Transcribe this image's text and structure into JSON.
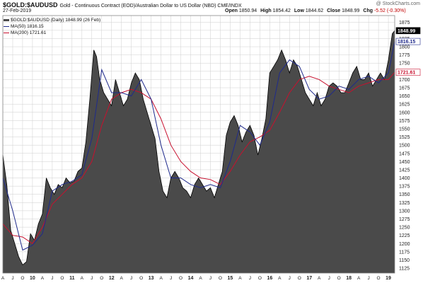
{
  "header": {
    "symbol": "$GOLD:$AUDUSD",
    "description": "Gold - Continuous Contract (EOD)/Australian Dollar to US Dollar (NBD)  CME/INDX",
    "date": "27-Feb-2019",
    "watermark": "@ StockCharts.com",
    "ohlc": {
      "open_label": "Open",
      "open": "1850.94",
      "high_label": "High",
      "high": "1854.42",
      "low_label": "Low",
      "low": "1844.62",
      "close_label": "Close",
      "close": "1848.99",
      "chg_label": "Chg",
      "chg": "-5.52 (-0.30%)"
    }
  },
  "legend": {
    "main": "$GOLD:$AUDUSD (Daily) 1848.99 (26 Feb)",
    "ma50": "MA(50) 1816.15",
    "ma200": "MA(200) 1721.61"
  },
  "colors": {
    "area_fill": "#4a4a4a",
    "price_line": "#000000",
    "ma50": "#1f2a8c",
    "ma200": "#c8102e",
    "grid": "#cfcfcf"
  },
  "chart_data": {
    "type": "area",
    "title": "$GOLD:$AUDUSD",
    "ylim": [
      1110,
      1895
    ],
    "y_ticks": [
      1125,
      1150,
      1175,
      1200,
      1225,
      1250,
      1275,
      1300,
      1325,
      1350,
      1375,
      1400,
      1425,
      1450,
      1475,
      1500,
      1525,
      1550,
      1575,
      1600,
      1625,
      1650,
      1675,
      1700,
      1725,
      1750,
      1775,
      1800,
      1825,
      1850,
      1875
    ],
    "y_tick_labels": [
      "1125",
      "1150",
      "1175",
      "1200",
      "1225",
      "1250",
      "1275",
      "1300",
      "1325",
      "1350",
      "1375",
      "1400",
      "1425",
      "1450",
      "1475",
      "1500",
      "1525",
      "1550",
      "1575",
      "1600",
      "1625",
      "1650",
      "1675",
      "1700",
      "1725",
      "1750",
      "1775",
      "1800",
      "1825",
      "1850",
      "1875"
    ],
    "x_tick_labels": [
      "A",
      "J",
      "O",
      "10",
      "A",
      "J",
      "O",
      "11",
      "A",
      "J",
      "O",
      "12",
      "A",
      "J",
      "O",
      "13",
      "A",
      "J",
      "O",
      "14",
      "A",
      "J",
      "O",
      "15",
      "A",
      "J",
      "O",
      "16",
      "A",
      "J",
      "O",
      "17",
      "A",
      "J",
      "O",
      "18",
      "A",
      "J",
      "O",
      "19"
    ],
    "x_range": [
      2009.25,
      2019.16
    ],
    "last_value_labels": {
      "close": "1848.99",
      "ma50": "1816.15",
      "ma200": "1721.61"
    },
    "series": [
      {
        "name": "$GOLD:$AUDUSD",
        "x": [
          2009.25,
          2009.35,
          2009.45,
          2009.55,
          2009.65,
          2009.75,
          2009.85,
          2009.95,
          2010.05,
          2010.15,
          2010.25,
          2010.35,
          2010.45,
          2010.55,
          2010.65,
          2010.75,
          2010.85,
          2010.95,
          2011.05,
          2011.15,
          2011.25,
          2011.35,
          2011.45,
          2011.55,
          2011.62,
          2011.7,
          2011.8,
          2011.9,
          2012.0,
          2012.1,
          2012.2,
          2012.3,
          2012.4,
          2012.5,
          2012.6,
          2012.7,
          2012.8,
          2012.9,
          2013.0,
          2013.1,
          2013.2,
          2013.3,
          2013.4,
          2013.5,
          2013.6,
          2013.7,
          2013.8,
          2013.9,
          2014.0,
          2014.1,
          2014.2,
          2014.3,
          2014.4,
          2014.5,
          2014.6,
          2014.7,
          2014.8,
          2014.9,
          2015.0,
          2015.1,
          2015.2,
          2015.3,
          2015.4,
          2015.5,
          2015.6,
          2015.7,
          2015.8,
          2015.9,
          2016.0,
          2016.1,
          2016.2,
          2016.3,
          2016.4,
          2016.5,
          2016.6,
          2016.7,
          2016.8,
          2016.9,
          2017.0,
          2017.1,
          2017.2,
          2017.3,
          2017.4,
          2017.5,
          2017.6,
          2017.7,
          2017.8,
          2017.9,
          2018.0,
          2018.1,
          2018.2,
          2018.3,
          2018.4,
          2018.5,
          2018.6,
          2018.7,
          2018.8,
          2018.9,
          2019.0,
          2019.1,
          2019.16
        ],
        "values": [
          1470,
          1380,
          1240,
          1200,
          1160,
          1135,
          1145,
          1230,
          1210,
          1260,
          1290,
          1400,
          1370,
          1350,
          1380,
          1370,
          1400,
          1385,
          1390,
          1420,
          1430,
          1510,
          1640,
          1790,
          1770,
          1700,
          1660,
          1640,
          1620,
          1700,
          1660,
          1620,
          1640,
          1690,
          1720,
          1700,
          1640,
          1600,
          1560,
          1520,
          1420,
          1360,
          1340,
          1400,
          1420,
          1400,
          1370,
          1360,
          1340,
          1380,
          1400,
          1380,
          1360,
          1370,
          1340,
          1380,
          1420,
          1530,
          1570,
          1590,
          1560,
          1510,
          1540,
          1560,
          1530,
          1470,
          1520,
          1580,
          1720,
          1740,
          1760,
          1790,
          1760,
          1720,
          1760,
          1740,
          1700,
          1660,
          1640,
          1620,
          1660,
          1620,
          1640,
          1680,
          1690,
          1680,
          1660,
          1660,
          1690,
          1720,
          1740,
          1700,
          1700,
          1720,
          1680,
          1700,
          1720,
          1700,
          1760,
          1840,
          1849
        ]
      },
      {
        "name": "MA(50)",
        "x": [
          2009.25,
          2009.5,
          2009.75,
          2010.0,
          2010.25,
          2010.5,
          2010.75,
          2011.0,
          2011.25,
          2011.5,
          2011.75,
          2012.0,
          2012.25,
          2012.5,
          2012.75,
          2013.0,
          2013.25,
          2013.5,
          2013.75,
          2014.0,
          2014.25,
          2014.5,
          2014.75,
          2015.0,
          2015.25,
          2015.5,
          2015.75,
          2016.0,
          2016.25,
          2016.5,
          2016.75,
          2017.0,
          2017.25,
          2017.5,
          2017.75,
          2018.0,
          2018.25,
          2018.5,
          2018.75,
          2019.0,
          2019.16
        ],
        "values": [
          1400,
          1300,
          1180,
          1195,
          1230,
          1360,
          1380,
          1390,
          1410,
          1520,
          1730,
          1660,
          1660,
          1650,
          1700,
          1640,
          1500,
          1400,
          1400,
          1380,
          1370,
          1380,
          1370,
          1450,
          1560,
          1540,
          1500,
          1570,
          1720,
          1760,
          1740,
          1670,
          1640,
          1650,
          1680,
          1670,
          1700,
          1710,
          1690,
          1720,
          1816
        ]
      },
      {
        "name": "MA(200)",
        "x": [
          2009.25,
          2009.5,
          2009.75,
          2010.0,
          2010.25,
          2010.5,
          2010.75,
          2011.0,
          2011.25,
          2011.5,
          2011.75,
          2012.0,
          2012.25,
          2012.5,
          2012.75,
          2013.0,
          2013.25,
          2013.5,
          2013.75,
          2014.0,
          2014.25,
          2014.5,
          2014.75,
          2015.0,
          2015.25,
          2015.5,
          2015.75,
          2016.0,
          2016.25,
          2016.5,
          2016.75,
          2017.0,
          2017.25,
          2017.5,
          2017.75,
          2018.0,
          2018.25,
          2018.5,
          2018.75,
          2019.0,
          2019.16
        ],
        "values": [
          1260,
          1225,
          1220,
          1200,
          1250,
          1320,
          1350,
          1380,
          1400,
          1450,
          1560,
          1640,
          1660,
          1670,
          1660,
          1640,
          1580,
          1500,
          1450,
          1420,
          1400,
          1395,
          1380,
          1420,
          1470,
          1510,
          1525,
          1545,
          1600,
          1660,
          1700,
          1710,
          1700,
          1680,
          1670,
          1660,
          1680,
          1690,
          1700,
          1700,
          1722
        ]
      }
    ]
  }
}
